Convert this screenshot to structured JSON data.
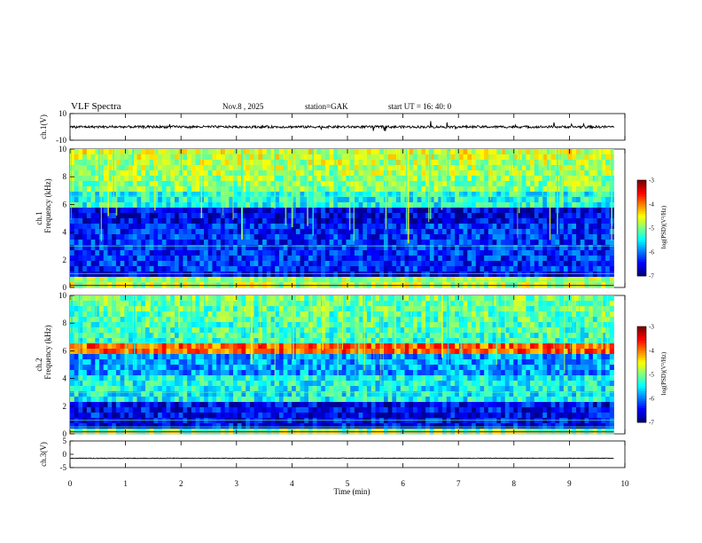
{
  "header": {
    "title": "VLF  Spectra",
    "date": "Nov.8  , 2025",
    "station": "station=GAK",
    "start": "start  UT =   16: 40: 0"
  },
  "chart_data": [
    {
      "type": "line",
      "panel": "ch1-waveform",
      "ylabel": "ch.1(V)",
      "ylim": [
        -10,
        10
      ],
      "yticks": [
        "10",
        "-10"
      ],
      "baseline": 0,
      "color": "#000000"
    },
    {
      "type": "heatmap",
      "panel": "ch1-spectrogram",
      "ylabel": "ch.1\nFrequency  (kHz)",
      "ylabel_line1": "ch.1",
      "ylabel_line2": "Frequency  (kHz)",
      "ylim": [
        0,
        10
      ],
      "yticks": [
        "0",
        "2",
        "4",
        "6",
        "8",
        "10"
      ],
      "colorbar": {
        "label": "log(PSD)(V²/Hz)",
        "range": [
          -7,
          -3
        ],
        "ticks": [
          "-3",
          "-4",
          "-5",
          "-6",
          "-7"
        ]
      }
    },
    {
      "type": "heatmap",
      "panel": "ch2-spectrogram",
      "ylabel_line1": "ch.2",
      "ylabel_line2": "Frequency  (kHz)",
      "ylim": [
        0,
        10
      ],
      "yticks": [
        "0",
        "2",
        "4",
        "6",
        "8",
        "10"
      ],
      "colorbar": {
        "label": "log(PSD)(V²/Hz)",
        "range": [
          -7,
          -3
        ],
        "ticks": [
          "-3",
          "-4",
          "-5",
          "-6",
          "-7"
        ]
      }
    },
    {
      "type": "line",
      "panel": "ch3-waveform",
      "ylabel": "ch.3(V)",
      "ylim": [
        -5,
        5
      ],
      "yticks": [
        "5",
        "0",
        "-5"
      ],
      "baseline": -1.5,
      "color": "#000000"
    }
  ],
  "xaxis": {
    "label": "Time  (min)",
    "range": [
      0,
      10
    ],
    "ticks": [
      "0",
      "1",
      "2",
      "3",
      "4",
      "5",
      "6",
      "7",
      "8",
      "9",
      "10"
    ],
    "data_end": 9.8
  }
}
